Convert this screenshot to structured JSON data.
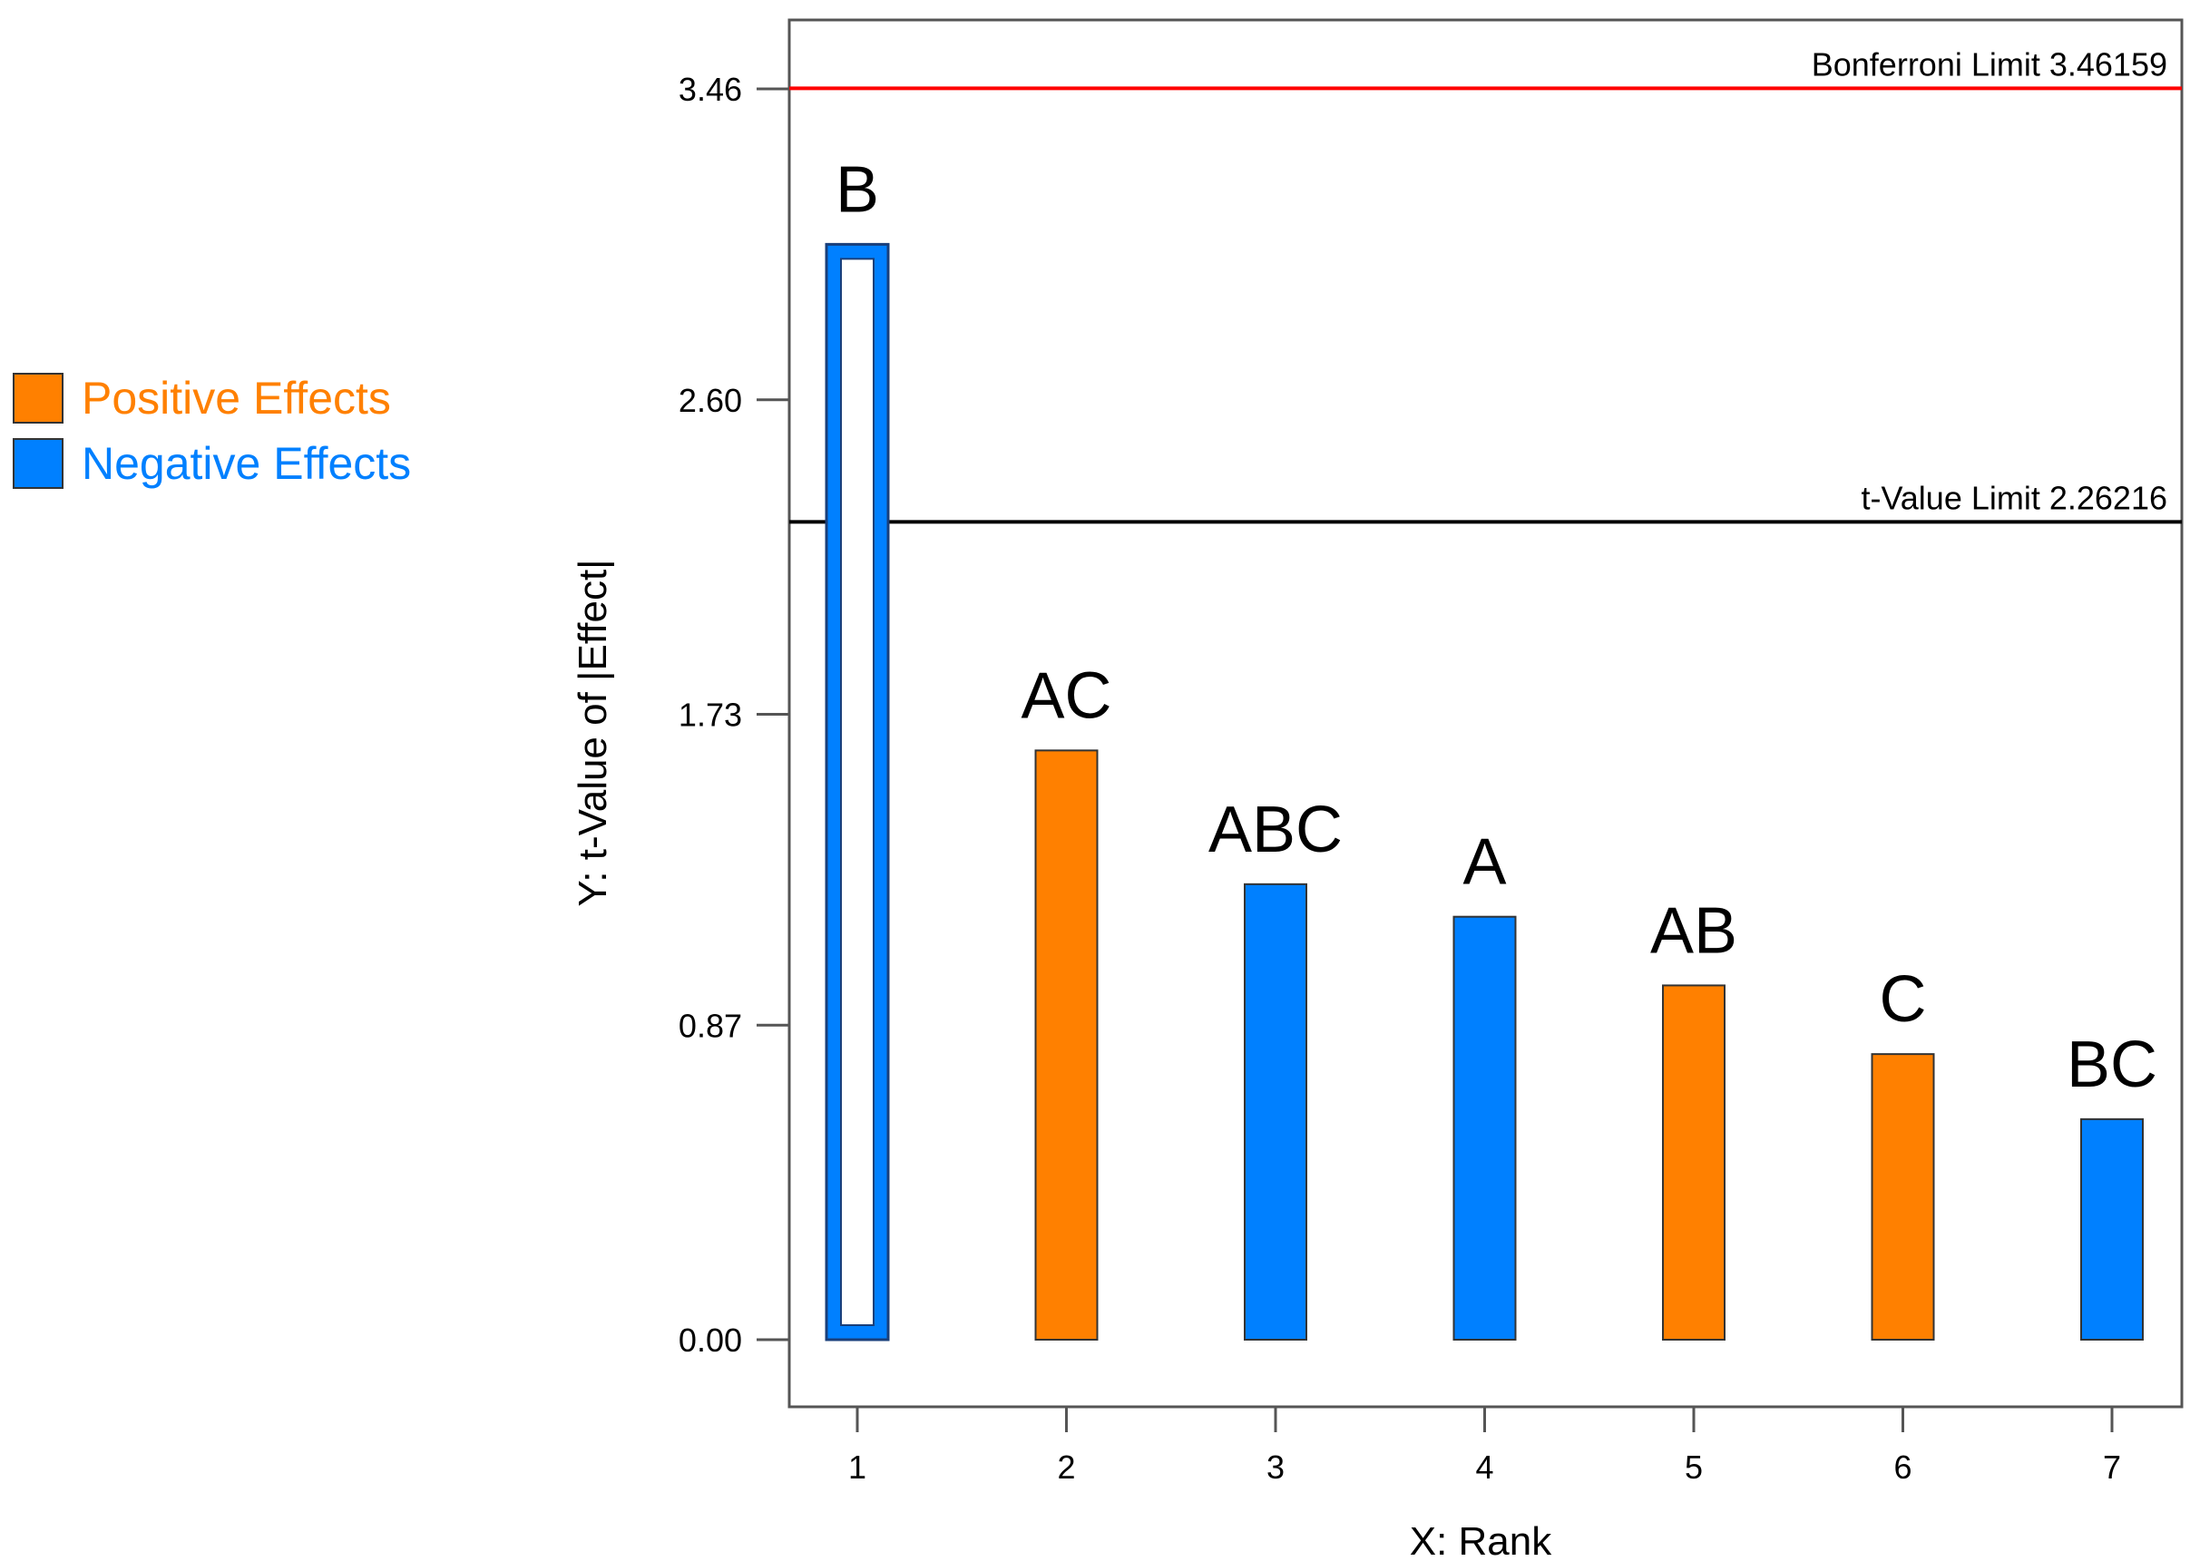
{
  "chart_data": {
    "type": "bar",
    "chart_title": "",
    "xlabel": "X: Rank",
    "ylabel": "Y: t-Value of |Effect|",
    "x_ticks": [
      "1",
      "2",
      "3",
      "4",
      "5",
      "6",
      "7"
    ],
    "y_ticks": [
      "0.00",
      "0.87",
      "1.73",
      "2.60",
      "3.46"
    ],
    "y_tick_values": [
      0,
      0.87,
      1.73,
      2.6,
      3.46
    ],
    "ylim": [
      -0.18,
      3.65
    ],
    "categories": [
      "B",
      "AC",
      "ABC",
      "A",
      "AB",
      "C",
      "BC"
    ],
    "ranks": [
      1,
      2,
      3,
      4,
      5,
      6,
      7
    ],
    "values": [
      3.03,
      1.63,
      1.26,
      1.17,
      0.98,
      0.79,
      0.61
    ],
    "effect_sign": [
      "negative",
      "positive",
      "negative",
      "negative",
      "positive",
      "positive",
      "negative"
    ],
    "highlighted": [
      true,
      false,
      false,
      false,
      false,
      false,
      false
    ],
    "reference_lines": [
      {
        "name": "bonferroni",
        "label": "Bonferroni Limit 3.46159",
        "value": 3.46159,
        "color": "#ff0000"
      },
      {
        "name": "t-value",
        "label": "t-Value Limit 2.26216",
        "value": 2.26216,
        "color": "#000000"
      }
    ],
    "legend": [
      {
        "label": "Positive Effects",
        "sign": "positive",
        "color": "#ff8000"
      },
      {
        "label": "Negative Effects",
        "sign": "negative",
        "color": "#0080ff"
      }
    ],
    "legend_position": "left"
  }
}
